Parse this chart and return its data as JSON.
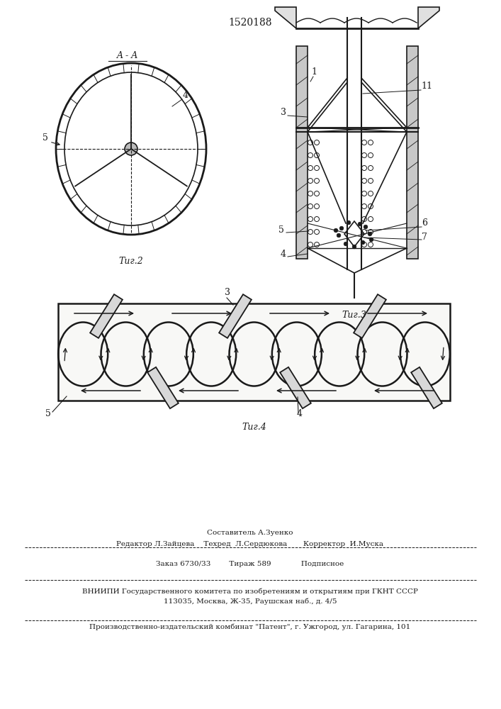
{
  "title_text": "1520188",
  "fig2_label": "Τиг.2",
  "fig3_label": "Τиг.3",
  "fig4_label": "Τиг.4",
  "aa_label": "A - A",
  "line_color": "#1a1a1a",
  "footer_line1_center": "Составитель А.Зуенко",
  "footer_line2": "Редактор Л.Зайцева    Техред  Л.Сердюкова       Корректор  И.Муска",
  "footer_line3": "Заказ 6730/33        Тираж 589             Подписное",
  "footer_line4": "ВНИИПИ Государственного комитета по изобретениям и открытиям при ГКНТ СССР",
  "footer_line5": "113035, Москва, Ж-35, Раушская наб., д. 4/5",
  "footer_line6": "Производственно-издательский комбинат \"Патент\", г. Ужгород, ул. Гагарина, 101"
}
